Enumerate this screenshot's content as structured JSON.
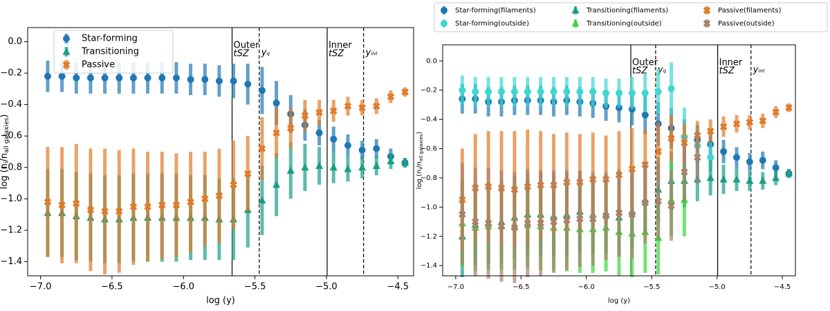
{
  "chart_data": [
    {
      "type": "errorbar",
      "legend": "upper left",
      "xlabel": "log (y)",
      "ylabel": [
        "log (n",
        "i",
        "/n",
        "all galaxies",
        ")"
      ],
      "xlim": [
        -7.09,
        -4.39
      ],
      "ylim": [
        -1.49,
        0.09
      ],
      "xticks": [
        {
          "value": -7.0,
          "label": "−7.0"
        },
        {
          "value": -6.5,
          "label": "−6.5"
        },
        {
          "value": -6.0,
          "label": "−6.0"
        },
        {
          "value": -5.5,
          "label": "−5.5"
        },
        {
          "value": -5.0,
          "label": "−5.0"
        },
        {
          "value": -4.5,
          "label": "−4.5"
        }
      ],
      "yticks": [
        {
          "value": 0.0,
          "label": "0.0"
        },
        {
          "value": -0.2,
          "label": "−0.2"
        },
        {
          "value": -0.4,
          "label": "−0.4"
        },
        {
          "value": -0.6,
          "label": "−0.6"
        },
        {
          "value": -0.8,
          "label": "−0.8"
        },
        {
          "value": -1.0,
          "label": "−1.0"
        },
        {
          "value": -1.2,
          "label": "−1.2"
        },
        {
          "value": -1.4,
          "label": "−1.4"
        }
      ],
      "vlines": [
        {
          "x": -5.66,
          "style": "solid",
          "text": [
            "Outer",
            "tSZ"
          ]
        },
        {
          "x": -5.47,
          "style": "dashed",
          "symbol": [
            "y",
            "q"
          ]
        },
        {
          "x": -4.995,
          "style": "solid",
          "text": [
            "Inner",
            "tSZ"
          ]
        },
        {
          "x": -4.74,
          "style": "dashed",
          "symbol": [
            "y",
            "int"
          ]
        }
      ],
      "x": [
        -6.95,
        -6.85,
        -6.75,
        -6.65,
        -6.55,
        -6.45,
        -6.35,
        -6.25,
        -6.15,
        -6.05,
        -5.95,
        -5.85,
        -5.75,
        -5.65,
        -5.55,
        -5.45,
        -5.35,
        -5.25,
        -5.15,
        -5.05,
        -4.95,
        -4.85,
        -4.75,
        -4.65,
        -4.55,
        -4.45
      ],
      "series": [
        {
          "name": "Star-forming",
          "color": "#1f77b4",
          "marker": "o",
          "values": [
            -0.22,
            -0.22,
            -0.23,
            -0.23,
            -0.23,
            -0.23,
            -0.23,
            -0.23,
            -0.23,
            -0.23,
            -0.24,
            -0.24,
            -0.25,
            -0.25,
            -0.27,
            -0.31,
            -0.39,
            -0.46,
            -0.53,
            -0.58,
            -0.62,
            -0.66,
            -0.69,
            -0.68,
            -0.73,
            -0.77
          ],
          "errors": [
            0.1,
            0.1,
            0.1,
            0.1,
            0.1,
            0.1,
            0.1,
            0.1,
            0.1,
            0.1,
            0.1,
            0.1,
            0.1,
            0.11,
            0.13,
            0.15,
            0.14,
            0.12,
            0.1,
            0.08,
            0.08,
            0.07,
            0.06,
            0.06,
            0.05,
            0.03
          ]
        },
        {
          "name": "Transitioning",
          "color": "#1a9e84",
          "marker": "^",
          "values": [
            -1.09,
            -1.09,
            -1.11,
            -1.12,
            -1.13,
            -1.13,
            -1.12,
            -1.12,
            -1.12,
            -1.12,
            -1.12,
            -1.12,
            -1.13,
            -1.13,
            -1.07,
            -1.01,
            -0.91,
            -0.82,
            -0.8,
            -0.79,
            -0.8,
            -0.81,
            -0.8,
            -0.79,
            -0.76,
            -0.77
          ],
          "errors": [
            0.28,
            0.28,
            0.28,
            0.28,
            0.28,
            0.28,
            0.28,
            0.28,
            0.28,
            0.28,
            0.27,
            0.27,
            0.26,
            0.26,
            0.24,
            0.22,
            0.2,
            0.18,
            0.15,
            0.12,
            0.1,
            0.08,
            0.07,
            0.06,
            0.05,
            0.03
          ]
        },
        {
          "name": "Passive",
          "color": "#e07b28",
          "marker": "X",
          "values": [
            -1.02,
            -1.04,
            -1.03,
            -1.07,
            -1.08,
            -1.08,
            -1.05,
            -1.05,
            -1.04,
            -1.04,
            -1.02,
            -1.0,
            -0.98,
            -0.91,
            -0.84,
            -0.68,
            -0.58,
            -0.55,
            -0.47,
            -0.45,
            -0.44,
            -0.41,
            -0.42,
            -0.41,
            -0.35,
            -0.32
          ],
          "errors": [
            0.35,
            0.37,
            0.38,
            0.39,
            0.4,
            0.39,
            0.37,
            0.35,
            0.34,
            0.33,
            0.32,
            0.3,
            0.3,
            0.28,
            0.24,
            0.2,
            0.16,
            0.13,
            0.1,
            0.08,
            0.07,
            0.06,
            0.05,
            0.05,
            0.04,
            0.03
          ]
        }
      ]
    },
    {
      "type": "errorbar",
      "legend": "above",
      "xlabel": "log (y)",
      "ylabel": [
        "log (n",
        "i",
        "/n",
        "all galaxies",
        ")"
      ],
      "xlim": [
        -7.1,
        -4.4
      ],
      "ylim": [
        -1.47,
        0.11
      ],
      "xticks": [
        {
          "value": -7.0,
          "label": "−7.0"
        },
        {
          "value": -6.5,
          "label": "−6.5"
        },
        {
          "value": -6.0,
          "label": "−6.0"
        },
        {
          "value": -5.5,
          "label": "−5.5"
        },
        {
          "value": -5.0,
          "label": "−5.0"
        },
        {
          "value": -4.5,
          "label": "−4.5"
        }
      ],
      "yticks": [
        {
          "value": 0.0,
          "label": "0.0"
        },
        {
          "value": -0.2,
          "label": "−0.2"
        },
        {
          "value": -0.4,
          "label": "−0.4"
        },
        {
          "value": -0.6,
          "label": "−0.6"
        },
        {
          "value": -0.8,
          "label": "−0.8"
        },
        {
          "value": -1.0,
          "label": "−1.0"
        },
        {
          "value": -1.2,
          "label": "−1.2"
        },
        {
          "value": -1.4,
          "label": "−1.4"
        }
      ],
      "vlines": [
        {
          "x": -5.66,
          "style": "solid",
          "text": [
            "Outer",
            "tSZ"
          ]
        },
        {
          "x": -5.47,
          "style": "dashed",
          "symbol": [
            "y",
            "q"
          ]
        },
        {
          "x": -4.995,
          "style": "solid",
          "text": [
            "Inner",
            "tSZ"
          ]
        },
        {
          "x": -4.74,
          "style": "dashed",
          "symbol": [
            "y",
            "int"
          ]
        }
      ],
      "x": [
        -6.95,
        -6.85,
        -6.75,
        -6.65,
        -6.55,
        -6.45,
        -6.35,
        -6.25,
        -6.15,
        -6.05,
        -5.95,
        -5.85,
        -5.75,
        -5.65,
        -5.55,
        -5.45,
        -5.35,
        -5.25,
        -5.15,
        -5.05,
        -4.95,
        -4.85,
        -4.75,
        -4.65,
        -4.55,
        -4.45
      ],
      "series": [
        {
          "name": "Star-forming(filaments)",
          "color": "#1f77b4",
          "marker": "o",
          "values": [
            -0.26,
            -0.26,
            -0.28,
            -0.28,
            -0.27,
            -0.27,
            -0.27,
            -0.28,
            -0.27,
            -0.28,
            -0.29,
            -0.31,
            -0.32,
            -0.33,
            -0.37,
            -0.43,
            -0.46,
            -0.52,
            -0.54,
            -0.57,
            -0.62,
            -0.66,
            -0.69,
            -0.68,
            -0.73,
            -0.77
          ],
          "errors": [
            0.1,
            0.1,
            0.1,
            0.1,
            0.1,
            0.1,
            0.1,
            0.1,
            0.1,
            0.1,
            0.1,
            0.1,
            0.1,
            0.11,
            0.13,
            0.15,
            0.14,
            0.12,
            0.1,
            0.08,
            0.08,
            0.07,
            0.06,
            0.06,
            0.05,
            0.03
          ]
        },
        {
          "name": "Star-forming(outside)",
          "color": "#3fd6d0",
          "marker": "o",
          "values": [
            -0.2,
            -0.21,
            -0.21,
            -0.21,
            -0.21,
            -0.21,
            -0.21,
            -0.21,
            -0.21,
            -0.21,
            -0.21,
            -0.22,
            -0.22,
            -0.22,
            -0.22,
            -0.21,
            -0.19,
            -0.52,
            -0.58,
            -0.66,
            null,
            null,
            null,
            null,
            null,
            null
          ],
          "errors": [
            0.1,
            0.1,
            0.1,
            0.1,
            0.1,
            0.1,
            0.1,
            0.1,
            0.1,
            0.1,
            0.1,
            0.1,
            0.1,
            0.11,
            0.13,
            0.15,
            0.18,
            0.2,
            0.12,
            0.1,
            null,
            null,
            null,
            null,
            null,
            null
          ]
        },
        {
          "name": "Transitioning(filaments)",
          "color": "#1a9e84",
          "marker": "^",
          "values": [
            -1.2,
            -1.12,
            -1.11,
            -1.1,
            -1.07,
            -1.05,
            -1.05,
            -1.06,
            -1.05,
            -1.03,
            -1.05,
            -1.05,
            -1.07,
            -1.03,
            -0.95,
            -0.88,
            -0.82,
            -0.82,
            -0.81,
            -0.8,
            -0.81,
            -0.81,
            -0.82,
            -0.82,
            -0.8,
            -0.77
          ],
          "errors": [
            0.28,
            0.28,
            0.28,
            0.28,
            0.28,
            0.28,
            0.28,
            0.28,
            0.28,
            0.28,
            0.27,
            0.27,
            0.26,
            0.26,
            0.24,
            0.22,
            0.2,
            0.18,
            0.15,
            0.12,
            0.1,
            0.08,
            0.07,
            0.06,
            0.05,
            0.03
          ]
        },
        {
          "name": "Transitioning(outside)",
          "color": "#3bd63b",
          "marker": "^",
          "values": [
            -1.11,
            -1.14,
            -1.13,
            -1.13,
            -1.13,
            -1.12,
            -1.13,
            -1.14,
            -1.14,
            -1.15,
            -1.15,
            -1.14,
            -1.17,
            -1.18,
            -1.17,
            -1.21,
            -0.95,
            -0.95,
            null,
            null,
            null,
            null,
            null,
            null,
            null,
            null
          ],
          "errors": [
            0.3,
            0.3,
            0.3,
            0.3,
            0.3,
            0.3,
            0.3,
            0.3,
            0.3,
            0.3,
            0.3,
            0.3,
            0.3,
            0.3,
            0.28,
            0.25,
            0.25,
            0.25,
            null,
            null,
            null,
            null,
            null,
            null,
            null,
            null
          ]
        },
        {
          "name": "Passive(filaments)",
          "color": "#e07b28",
          "marker": "X",
          "values": [
            -0.95,
            -0.87,
            -0.86,
            -0.87,
            -0.88,
            -0.86,
            -0.85,
            -0.85,
            -0.83,
            -0.83,
            -0.81,
            -0.81,
            -0.78,
            -0.74,
            -0.71,
            -0.62,
            -0.53,
            -0.56,
            -0.51,
            -0.48,
            -0.45,
            -0.43,
            -0.42,
            -0.41,
            -0.35,
            -0.32
          ],
          "errors": [
            0.35,
            0.37,
            0.38,
            0.39,
            0.4,
            0.39,
            0.37,
            0.35,
            0.34,
            0.33,
            0.32,
            0.3,
            0.3,
            0.28,
            0.24,
            0.2,
            0.16,
            0.13,
            0.1,
            0.08,
            0.07,
            0.06,
            0.05,
            0.05,
            0.04,
            0.03
          ]
        },
        {
          "name": "Passive(outside)",
          "color": "#a9806c",
          "marker": "X",
          "values": [
            -1.05,
            -1.1,
            -1.11,
            -1.13,
            -1.14,
            -1.11,
            -1.11,
            -1.1,
            -1.09,
            -1.08,
            -1.08,
            -1.06,
            -1.04,
            -1.05,
            -0.97,
            -0.96,
            -0.99,
            -0.76,
            -0.66,
            null,
            null,
            null,
            null,
            null,
            null,
            null
          ],
          "errors": [
            0.35,
            0.37,
            0.38,
            0.38,
            0.38,
            0.37,
            0.36,
            0.35,
            0.34,
            0.33,
            0.32,
            0.3,
            0.3,
            0.3,
            0.28,
            0.26,
            0.24,
            0.2,
            0.18,
            null,
            null,
            null,
            null,
            null,
            null,
            null
          ]
        }
      ]
    }
  ]
}
